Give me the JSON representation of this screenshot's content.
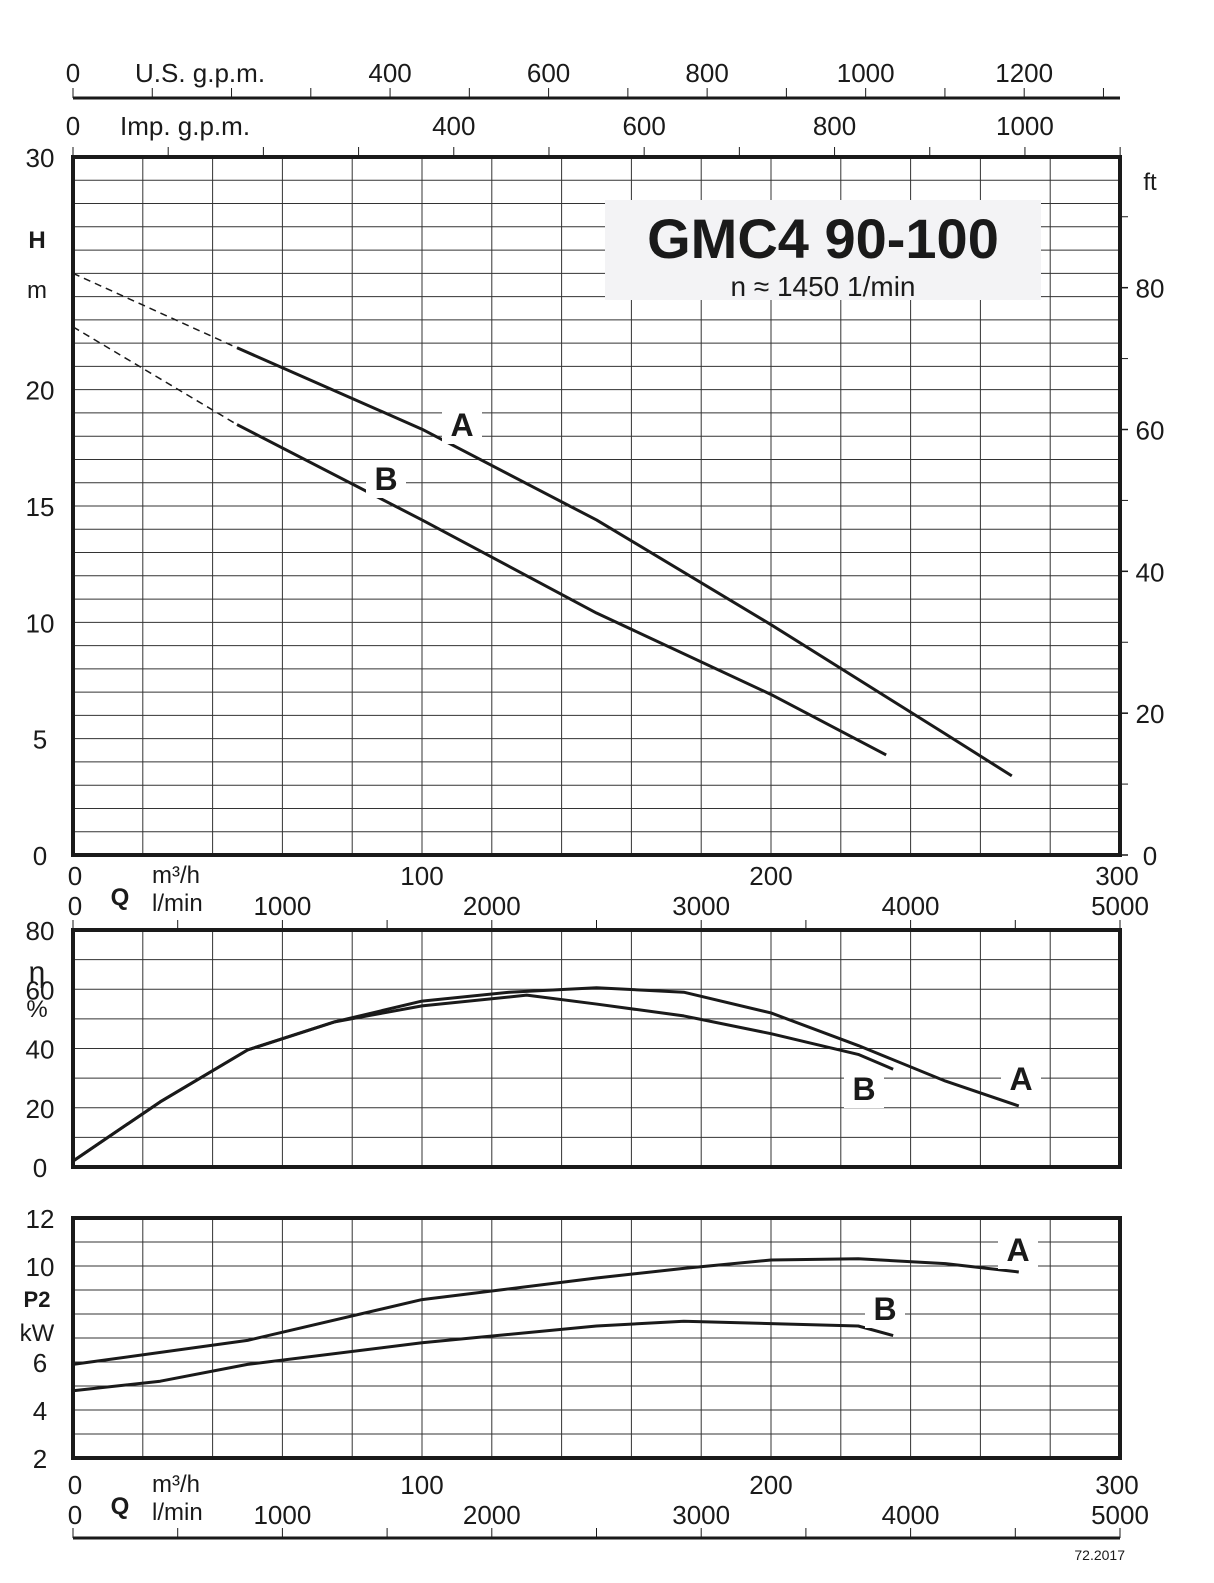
{
  "chart_data": [
    {
      "type": "line",
      "title": "GMC4 90-100",
      "subtitle": "n ≈ 1450 1/min",
      "xlabel": "Q",
      "x_units": [
        "m³/h",
        "l/min"
      ],
      "ylabel": "H",
      "y_unit": "m",
      "y2_unit": "ft",
      "xlim": [
        0,
        300
      ],
      "ylim": [
        0,
        30
      ],
      "x_ticks": [
        0,
        100,
        200,
        300
      ],
      "x_ticks_lmin": [
        0,
        1000,
        2000,
        3000,
        4000,
        5000
      ],
      "y_ticks": [
        0,
        5,
        10,
        15,
        20,
        30
      ],
      "y2_ticks": [
        0,
        20,
        40,
        60,
        80
      ],
      "top_axes": [
        {
          "label": "U.S. g.p.m.",
          "ticks": [
            0,
            400,
            600,
            800,
            1000,
            1200
          ]
        },
        {
          "label": "Imp. g.p.m.",
          "ticks": [
            0,
            400,
            600,
            800,
            1000
          ]
        }
      ],
      "grid": true,
      "series": [
        {
          "name": "A",
          "dashed_to": 47,
          "x": [
            0,
            47,
            100,
            150,
            200,
            250,
            269
          ],
          "y": [
            25.0,
            21.8,
            18.3,
            14.4,
            9.9,
            5.2,
            3.4
          ]
        },
        {
          "name": "B",
          "dashed_to": 47,
          "x": [
            0,
            47,
            100,
            150,
            200,
            233
          ],
          "y": [
            22.7,
            18.5,
            14.4,
            10.4,
            6.9,
            4.3
          ]
        }
      ]
    },
    {
      "type": "line",
      "ylabel": "η",
      "y_unit": "%",
      "xlim": [
        0,
        300
      ],
      "ylim": [
        0,
        80
      ],
      "y_ticks": [
        0,
        20,
        40,
        60,
        80
      ],
      "grid": true,
      "series": [
        {
          "name": "A",
          "x": [
            0,
            25,
            50,
            75,
            100,
            125,
            150,
            175,
            200,
            225,
            250,
            271
          ],
          "y": [
            2,
            22,
            39.5,
            49,
            56,
            59,
            60.5,
            59,
            52,
            41,
            29,
            20.6
          ]
        },
        {
          "name": "B",
          "x": [
            0,
            25,
            50,
            75,
            100,
            130,
            150,
            175,
            200,
            225,
            235
          ],
          "y": [
            2,
            22,
            39.5,
            49,
            54.4,
            58,
            55,
            51,
            45,
            38,
            33
          ]
        }
      ]
    },
    {
      "type": "line",
      "ylabel": "P2",
      "y_unit": "kW",
      "xlabel": "Q",
      "x_units": [
        "m³/h",
        "l/min"
      ],
      "xlim": [
        0,
        300
      ],
      "ylim": [
        2,
        12
      ],
      "x_ticks": [
        0,
        100,
        200,
        300
      ],
      "x_ticks_lmin": [
        0,
        1000,
        2000,
        3000,
        4000,
        5000
      ],
      "y_ticks": [
        2,
        4,
        6,
        10,
        12
      ],
      "grid": true,
      "series": [
        {
          "name": "A",
          "x": [
            0,
            50,
            100,
            150,
            175,
            200,
            225,
            250,
            271
          ],
          "y": [
            5.9,
            6.9,
            8.6,
            9.5,
            9.9,
            10.25,
            10.3,
            10.1,
            9.75
          ]
        },
        {
          "name": "B",
          "x": [
            0,
            25,
            50,
            100,
            150,
            175,
            200,
            225,
            235
          ],
          "y": [
            4.8,
            5.2,
            5.9,
            6.8,
            7.5,
            7.7,
            7.6,
            7.5,
            7.1
          ]
        }
      ]
    }
  ],
  "footer": "72.2017"
}
